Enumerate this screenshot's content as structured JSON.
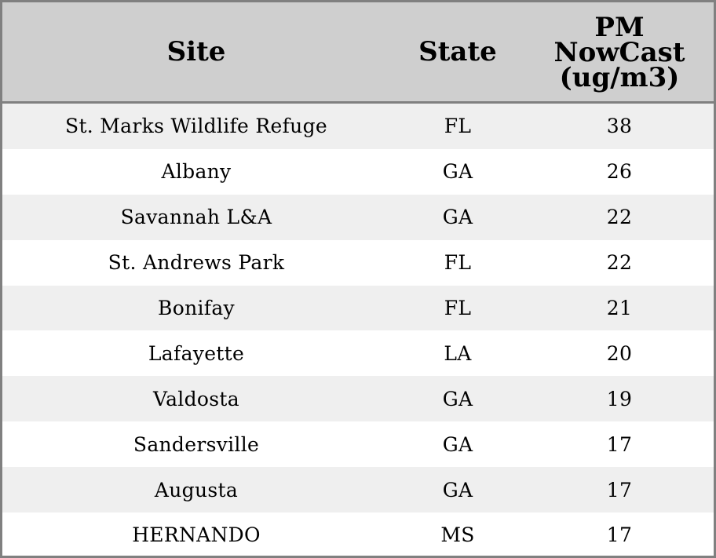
{
  "chart_data": {
    "type": "table",
    "columns": [
      "Site",
      "State",
      "PM NowCast (ug/m3)"
    ],
    "header_lines": {
      "site": "Site",
      "state": "State",
      "value": [
        "PM",
        "NowCast",
        "(ug/m3)"
      ]
    },
    "rows": [
      {
        "site": "St. Marks Wildlife Refuge",
        "state": "FL",
        "value": "38"
      },
      {
        "site": "Albany",
        "state": "GA",
        "value": "26"
      },
      {
        "site": "Savannah L&A",
        "state": "GA",
        "value": "22"
      },
      {
        "site": "St. Andrews Park",
        "state": "FL",
        "value": "22"
      },
      {
        "site": "Bonifay",
        "state": "FL",
        "value": "21"
      },
      {
        "site": "Lafayette",
        "state": "LA",
        "value": "20"
      },
      {
        "site": "Valdosta",
        "state": "GA",
        "value": "19"
      },
      {
        "site": "Sandersville",
        "state": "GA",
        "value": "17"
      },
      {
        "site": "Augusta",
        "state": "GA",
        "value": "17"
      },
      {
        "site": "HERNANDO",
        "state": "MS",
        "value": "17"
      }
    ]
  },
  "colors": {
    "header_background": "#cfcfcf",
    "border": "#808080",
    "row_shaded": "#efefef",
    "row_plain": "#ffffff",
    "text": "#000000"
  }
}
